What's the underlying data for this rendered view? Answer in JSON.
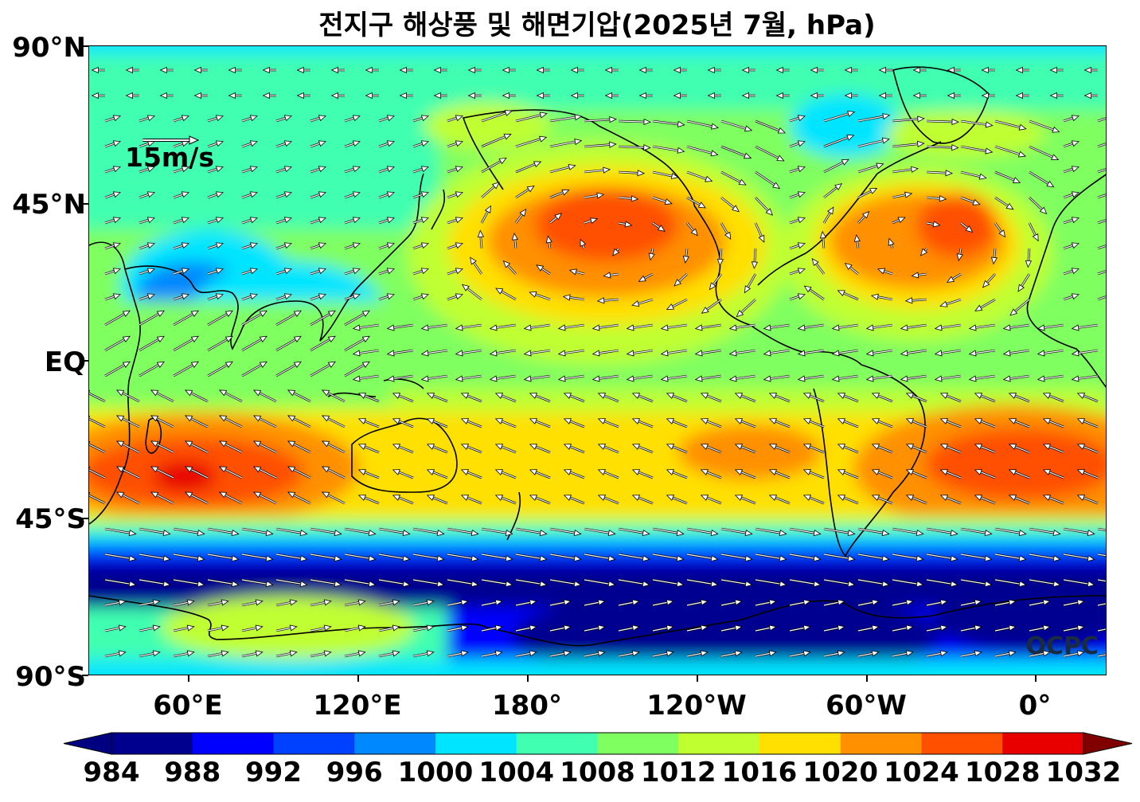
{
  "title": "전지구 해상풍 및 해면기압(2025년 7월, hPa)",
  "lat_labels": [
    "90°N",
    "45°N",
    "EQ",
    "45°S",
    "90°S"
  ],
  "lon_labels": [
    "60°E",
    "120°E",
    "180°",
    "120°W",
    "60°W",
    "0°"
  ],
  "reference_vector_label": "15m/s",
  "watermark": "OCPC",
  "colorbar": {
    "levels": [
      "984",
      "988",
      "992",
      "996",
      "1000",
      "1004",
      "1008",
      "1012",
      "1016",
      "1020",
      "1024",
      "1028",
      "1032"
    ],
    "colors": [
      "#000080",
      "#00008f",
      "#0000ff",
      "#0040ff",
      "#0088ff",
      "#00e5ff",
      "#40ffb0",
      "#80ff60",
      "#c0ff30",
      "#ffe000",
      "#ff9000",
      "#ff5000",
      "#e80000",
      "#800000"
    ],
    "unit": "hPa"
  },
  "colors": {
    "background": "#ffffff",
    "coastline": "#000000",
    "vector": "#ffffff"
  }
}
